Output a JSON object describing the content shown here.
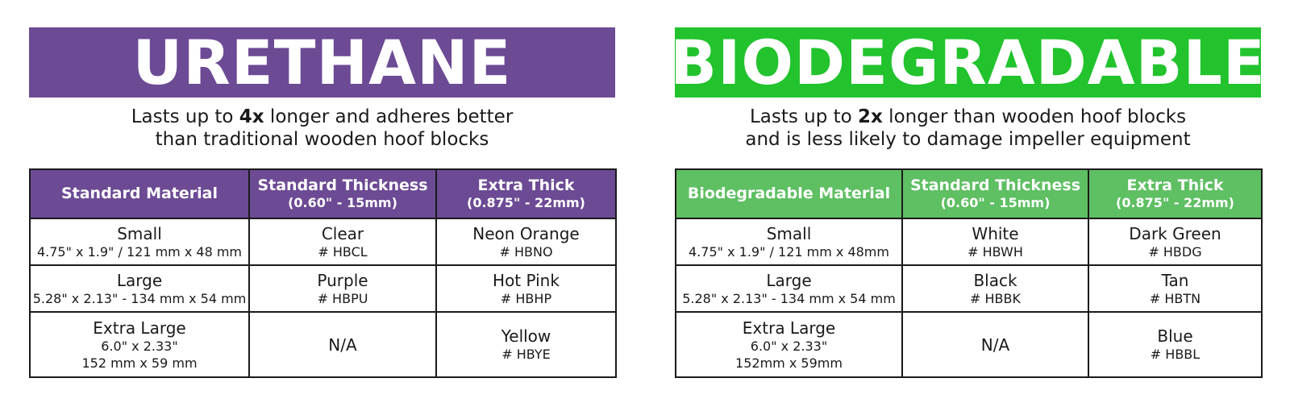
{
  "colors": {
    "urethane_accent": "#6c4a94",
    "biodegradable_banner": "#22c32d",
    "biodegradable_header": "#5fbf63"
  },
  "urethane": {
    "banner": "URETHANE",
    "desc_pre": "Lasts up to ",
    "desc_bold": "4x",
    "desc_post": " longer and adheres better",
    "desc_line2": "than traditional wooden hoof blocks",
    "headers": [
      {
        "title": "Standard Material",
        "sub": ""
      },
      {
        "title": "Standard Thickness",
        "sub": "(0.60\" - 15mm)"
      },
      {
        "title": "Extra Thick",
        "sub": "(0.875\" - 22mm)"
      }
    ],
    "rows": [
      {
        "size": "Small",
        "dims": [
          "4.75\" x 1.9\" / 121 mm x 48 mm"
        ],
        "standard": {
          "name": "Clear",
          "code": "# HBCL"
        },
        "extra": {
          "name": "Neon Orange",
          "code": "# HBNO"
        }
      },
      {
        "size": "Large",
        "dims": [
          "5.28\" x 2.13\" - 134 mm x 54 mm"
        ],
        "standard": {
          "name": "Purple",
          "code": "# HBPU"
        },
        "extra": {
          "name": "Hot Pink",
          "code": "# HBHP"
        }
      },
      {
        "size": "Extra Large",
        "dims": [
          "6.0\" x 2.33\"",
          "152 mm x 59 mm"
        ],
        "standard": {
          "name": "N/A",
          "code": ""
        },
        "extra": {
          "name": "Yellow",
          "code": "# HBYE"
        }
      }
    ]
  },
  "biodegradable": {
    "banner": "BIODEGRADABLE",
    "desc_pre": "Lasts up to ",
    "desc_bold": "2x",
    "desc_post": " longer than wooden hoof blocks",
    "desc_line2": "and is less likely to damage impeller equipment",
    "headers": [
      {
        "title": "Biodegradable Material",
        "sub": ""
      },
      {
        "title": "Standard Thickness",
        "sub": "(0.60\" - 15mm)"
      },
      {
        "title": "Extra Thick",
        "sub": "(0.875\" - 22mm)"
      }
    ],
    "rows": [
      {
        "size": "Small",
        "dims": [
          "4.75\" x 1.9\" / 121 mm x 48mm"
        ],
        "standard": {
          "name": "White",
          "code": "# HBWH"
        },
        "extra": {
          "name": "Dark Green",
          "code": "# HBDG"
        }
      },
      {
        "size": "Large",
        "dims": [
          "5.28\" x 2.13\" - 134 mm x 54 mm"
        ],
        "standard": {
          "name": "Black",
          "code": "# HBBK"
        },
        "extra": {
          "name": "Tan",
          "code": "# HBTN"
        }
      },
      {
        "size": "Extra Large",
        "dims": [
          "6.0\" x 2.33\"",
          "152mm x 59mm"
        ],
        "standard": {
          "name": "N/A",
          "code": ""
        },
        "extra": {
          "name": "Blue",
          "code": "# HBBL"
        }
      }
    ]
  }
}
